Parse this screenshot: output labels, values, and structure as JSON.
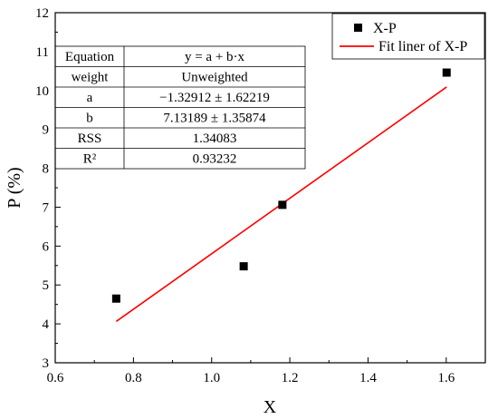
{
  "chart_data": {
    "type": "scatter",
    "xlabel": "X",
    "ylabel": "P (%)",
    "xlim": [
      0.6,
      1.7
    ],
    "ylim": [
      3,
      12
    ],
    "x_ticks": [
      "0.6",
      "0.8",
      "1.0",
      "1.2",
      "1.4",
      "1.6"
    ],
    "y_ticks": [
      "3",
      "4",
      "5",
      "6",
      "7",
      "8",
      "9",
      "10",
      "11",
      "12"
    ],
    "grid": false,
    "legend_position": "top-right",
    "series": [
      {
        "name": "X-P",
        "kind": "scatter",
        "marker": "square",
        "color": "#000000",
        "points": [
          {
            "x": 0.756,
            "y": 4.65
          },
          {
            "x": 1.082,
            "y": 5.48
          },
          {
            "x": 1.181,
            "y": 7.06
          },
          {
            "x": 1.601,
            "y": 10.46
          }
        ]
      },
      {
        "name": "Fit liner of X-P",
        "kind": "line",
        "color": "#ff0000",
        "x_range": [
          0.756,
          1.601
        ],
        "intercept": -1.32912,
        "slope": 7.13189
      }
    ],
    "fit_table": [
      [
        "Equation",
        "y = a + b·x"
      ],
      [
        "weight",
        "Unweighted"
      ],
      [
        "a",
        "−1.32912 ± 1.62219"
      ],
      [
        "b",
        "7.13189 ± 1.35874"
      ],
      [
        "RSS",
        "1.34083"
      ],
      [
        "R²",
        "0.93232"
      ]
    ]
  }
}
